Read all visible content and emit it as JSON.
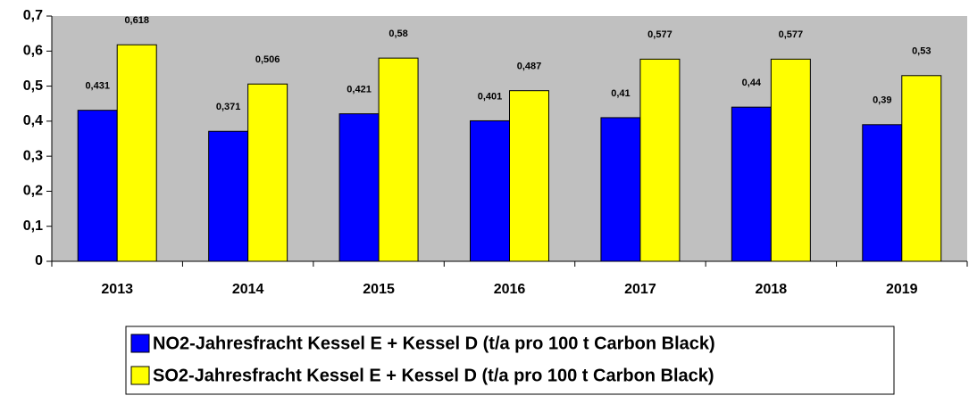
{
  "chart_data": {
    "type": "bar",
    "categories": [
      "2013",
      "2014",
      "2015",
      "2016",
      "2017",
      "2018",
      "2019"
    ],
    "series": [
      {
        "name": "NO2-Jahresfracht Kessel E + Kessel D (t/a pro 100 t Carbon Black)",
        "color": "#0000ff",
        "values": [
          0.431,
          0.371,
          0.421,
          0.401,
          0.41,
          0.44,
          0.39
        ],
        "value_labels": [
          "0,431",
          "0,371",
          "0,421",
          "0,401",
          "0,41",
          "0,44",
          "0,39"
        ]
      },
      {
        "name": "SO2-Jahresfracht Kessel E + Kessel D (t/a pro 100 t Carbon Black)",
        "color": "#ffff00",
        "values": [
          0.618,
          0.506,
          0.58,
          0.487,
          0.577,
          0.577,
          0.53
        ],
        "value_labels": [
          "0,618",
          "0,506",
          "0,58",
          "0,487",
          "0,577",
          "0,577",
          "0,53"
        ]
      }
    ],
    "ylim": [
      0,
      0.7
    ],
    "yticks": [
      0,
      {
        "value": 0.1,
        "label": "0,1"
      },
      {
        "value": 0.2,
        "label": "0,2"
      },
      {
        "value": 0.3,
        "label": "0,3"
      },
      {
        "value": 0.4,
        "label": "0,4"
      },
      {
        "value": 0.5,
        "label": "0,5"
      },
      {
        "value": 0.6,
        "label": "0,6"
      },
      {
        "value": 0.7,
        "label": "0,7"
      }
    ],
    "plot_background": "#c0c0c0",
    "legend": "bottom"
  }
}
